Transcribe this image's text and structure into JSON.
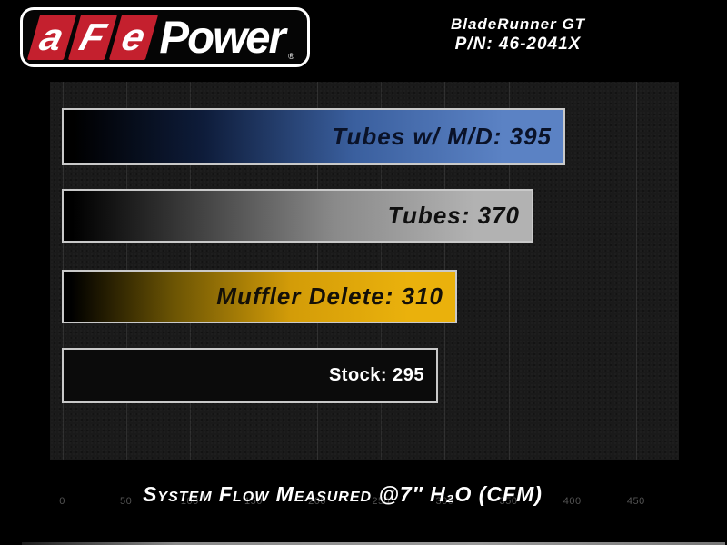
{
  "header": {
    "logo": {
      "letters": [
        "a",
        "F",
        "e"
      ],
      "wordmark": "Power",
      "registered_mark": "®",
      "panel_color": "#c4202e",
      "text_color": "#ffffff"
    },
    "product": {
      "name": "BladeRunner GT",
      "part_number": "P/N: 46-2041X"
    }
  },
  "chart_data": {
    "type": "bar",
    "orientation": "horizontal",
    "title": "System Flow Measured @7″ H₂O (CFM)",
    "categories": [
      "Tubes w/ M/D",
      "Tubes",
      "Muffler Delete",
      "Stock"
    ],
    "values": [
      395,
      370,
      310,
      295
    ],
    "bar_labels": [
      "Tubes w/ M/D: 395",
      "Tubes: 370",
      "Muffler Delete: 310",
      "Stock: 295"
    ],
    "x_ticks": [
      0,
      50,
      100,
      150,
      200,
      250,
      300,
      350,
      400,
      450
    ],
    "xlim": [
      0,
      493
    ],
    "grid": "vertical",
    "legend": "none",
    "plot_bg": "#1a1a1a",
    "gridline_color": "rgba(255,255,255,0.09)",
    "bar_border_color": "#c9c9c9",
    "tick_color": "#535353",
    "bar_styles": [
      {
        "name": "blue-gradient",
        "stops": [
          "#000000",
          "#0e1c3a",
          "#3a5f9e",
          "#5b82c4"
        ],
        "label_color": "#0a1228",
        "label_italic": true
      },
      {
        "name": "silver-gradient",
        "stops": [
          "#000000",
          "#3f3f3f",
          "#8a8a8a",
          "#b2b2b2"
        ],
        "label_color": "#101010",
        "label_italic": true
      },
      {
        "name": "gold-gradient",
        "stops": [
          "#000000",
          "#6b5404",
          "#d39c08",
          "#eab10c"
        ],
        "label_color": "#141008",
        "label_italic": true
      },
      {
        "name": "black-solid",
        "stops": [
          "#0b0b0b",
          "#0b0b0b",
          "#0b0b0b",
          "#0b0b0b"
        ],
        "label_color": "#ffffff",
        "label_italic": false
      }
    ]
  }
}
